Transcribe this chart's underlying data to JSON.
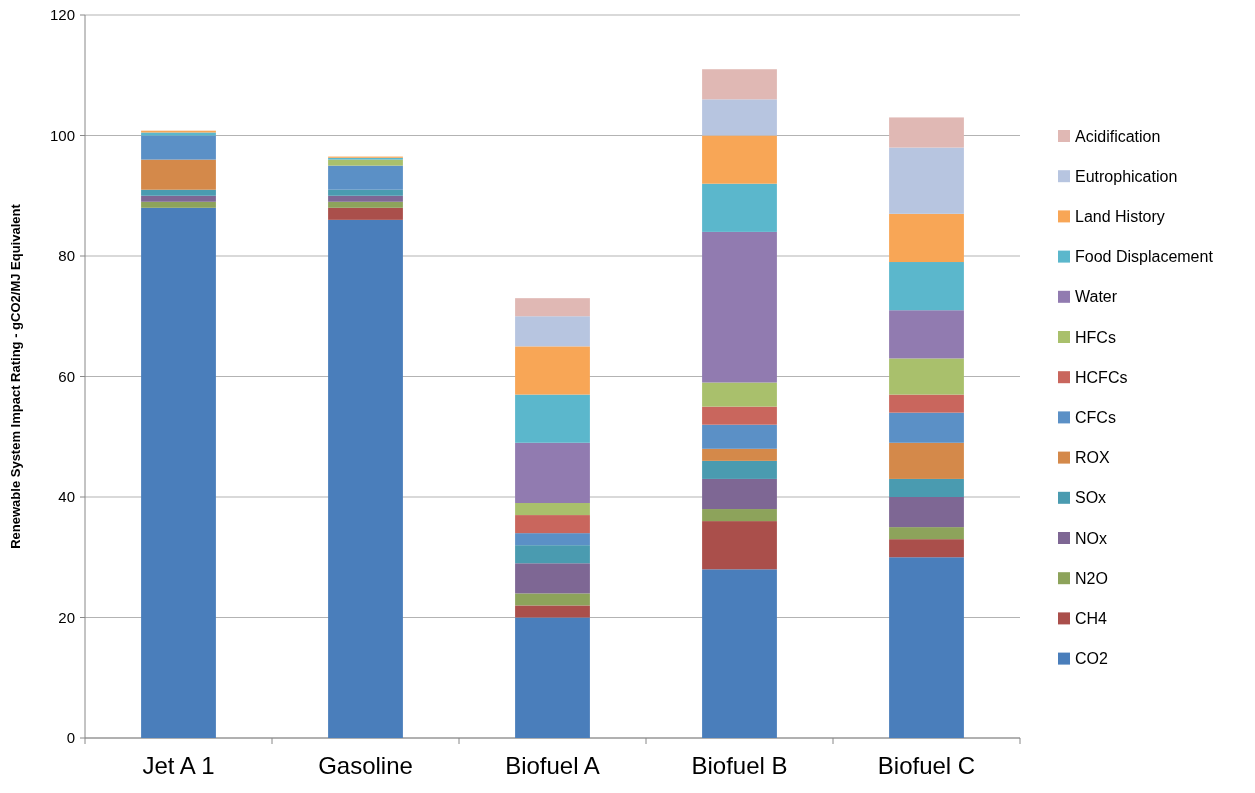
{
  "chart_data": {
    "type": "bar",
    "stacked": true,
    "ylabel": "Renewable System Impact Rating - gCO2/MJ Equivalent",
    "categories": [
      "Jet A 1",
      "Gasoline",
      "Biofuel A",
      "Biofuel B",
      "Biofuel C"
    ],
    "ylim": [
      0,
      120
    ],
    "yticks": [
      0,
      20,
      40,
      60,
      80,
      100,
      120
    ],
    "grid": "y",
    "legend": "right",
    "series": [
      {
        "name": "CO2",
        "color": "#4a7ebb",
        "values": [
          88,
          86,
          20,
          28,
          30
        ]
      },
      {
        "name": "CH4",
        "color": "#aa4f4b",
        "values": [
          0,
          2,
          2,
          8,
          3
        ]
      },
      {
        "name": "N2O",
        "color": "#8da35b",
        "values": [
          1,
          1,
          2,
          2,
          2
        ]
      },
      {
        "name": "NOx",
        "color": "#7e6794",
        "values": [
          1,
          1,
          5,
          5,
          5
        ]
      },
      {
        "name": "SOx",
        "color": "#4a9bb0",
        "values": [
          1,
          1,
          3,
          3,
          3
        ]
      },
      {
        "name": "ROX",
        "color": "#d4894a",
        "values": [
          5,
          0,
          0,
          2,
          6
        ]
      },
      {
        "name": "CFCs",
        "color": "#5b90c6",
        "values": [
          4,
          4,
          2,
          4,
          5
        ]
      },
      {
        "name": "HCFCs",
        "color": "#c9665d",
        "values": [
          0,
          0,
          3,
          3,
          3
        ]
      },
      {
        "name": "HFCs",
        "color": "#a9c06c",
        "values": [
          0,
          1,
          2,
          4,
          6
        ]
      },
      {
        "name": "Water",
        "color": "#917bb0",
        "values": [
          0,
          0,
          10,
          25,
          8
        ]
      },
      {
        "name": "Food Displacement",
        "color": "#5bb7cc",
        "values": [
          0.5,
          0.3,
          8,
          8,
          8
        ]
      },
      {
        "name": "Land History",
        "color": "#f8a656",
        "values": [
          0.3,
          0.2,
          8,
          8,
          8
        ]
      },
      {
        "name": "Eutrophication",
        "color": "#b7c5e0",
        "values": [
          0,
          0,
          5,
          6,
          11
        ]
      },
      {
        "name": "Acidification",
        "color": "#e0b8b4",
        "values": [
          0,
          0,
          3,
          5,
          5
        ]
      }
    ]
  }
}
